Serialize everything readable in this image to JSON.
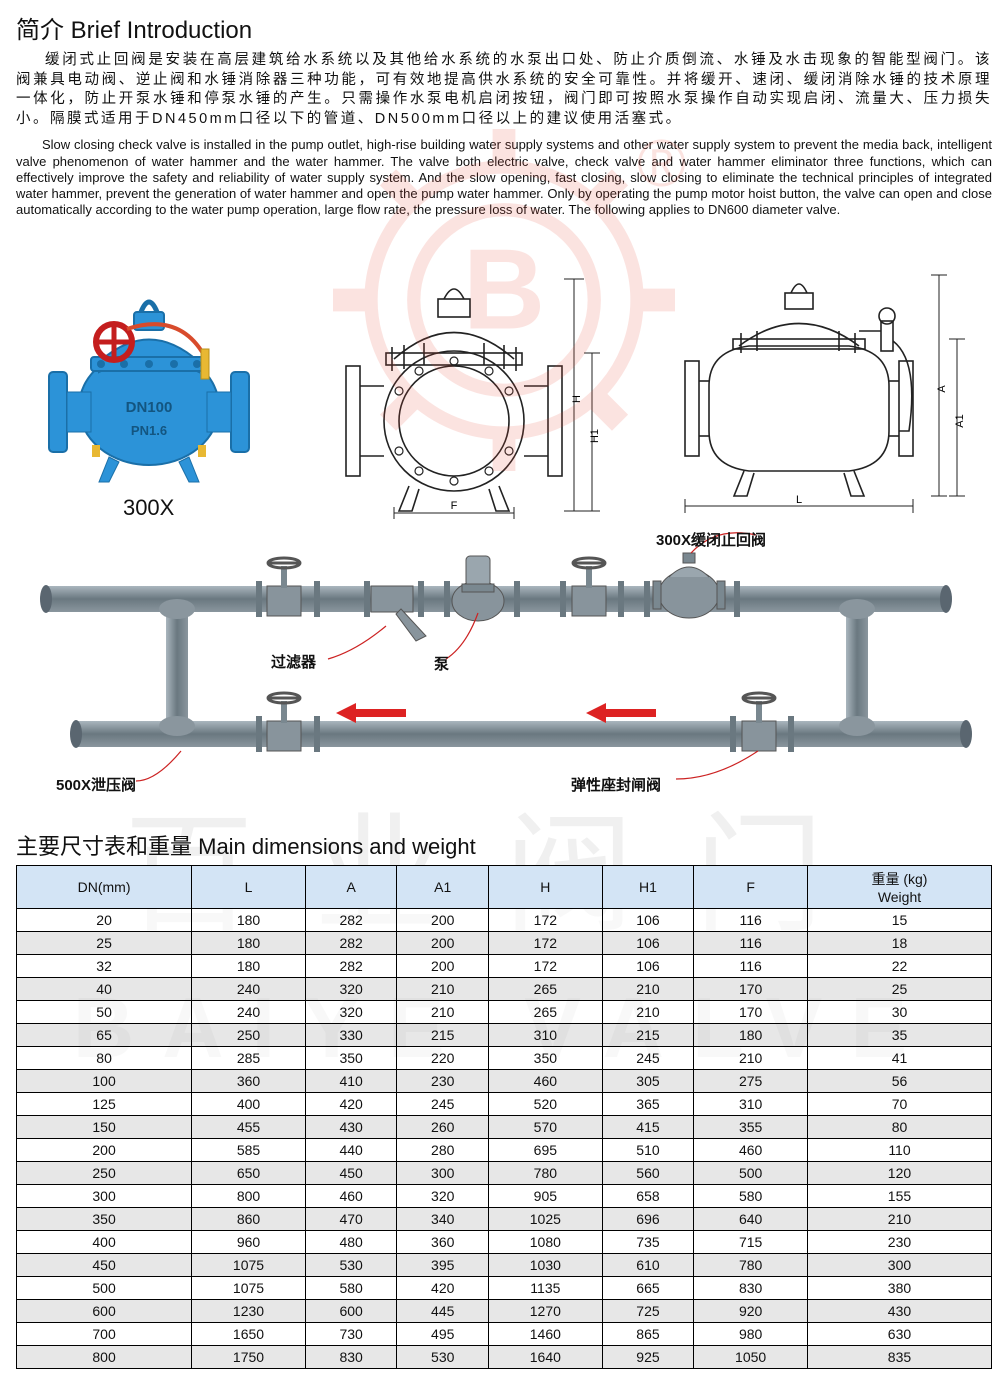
{
  "title_heading": "简介 Brief Introduction",
  "chinese_intro": "缓闭式止回阀是安装在高层建筑给水系统以及其他给水系统的水泵出口处、防止介质倒流、水锤及水击现象的智能型阀门。该阀兼具电动阀、逆止阀和水锤消除器三种功能，可有效地提高供水系统的安全可靠性。并将缓开、速闭、缓闭消除水锤的技术原理一体化，防止开泵水锤和停泵水锤的产生。只需操作水泵电机启闭按钮，阀门即可按照水泵操作自动实现启闭、流量大、压力损失小。隔膜式适用于DN450mm口径以下的管道、DN500mm口径以上的建议使用活塞式。",
  "english_intro": "Slow closing check valve is installed in the pump outlet, high-rise building water supply systems and other water supply system to prevent the media back, intelligent valve phenomenon of water hammer and the water hammer. The valve both electric valve, check valve and water hammer eliminator three functions, which can effectively improve the safety and reliability of water supply system. And the slow opening, fast closing, slow closing to eliminate the technical principles of integrated water hammer, prevent the generation of water hammer and open the pump water hammer. Only by operating the pump motor hoist button, the valve can open and close automatically according to the water pump operation, large flow rate, the pressure loss of water. The following applies to DN600 diameter valve.",
  "product_label": "300X",
  "tech_drawing": {
    "dim_H": "H",
    "dim_H1": "H1",
    "dim_F": "F",
    "dim_L": "L",
    "dim_A": "A",
    "dim_A1": "A1"
  },
  "install_labels": {
    "valve_300x": "300X缓闭止回阀",
    "filter": "过滤器",
    "pump": "泵",
    "relief_500x": "500X泄压阀",
    "elastic_gate": "弹性座封闸阀"
  },
  "table_heading": "主要尺寸表和重量 Main dimensions and weight",
  "table": {
    "header_bg": "#d3e4f5",
    "row_alt_bg": "#d4d4d4",
    "columns": [
      "DN(mm)",
      "L",
      "A",
      "A1",
      "H",
      "H1",
      "F",
      "重量 (kg)\nWeight"
    ],
    "rows": [
      [
        "20",
        "180",
        "282",
        "200",
        "172",
        "106",
        "116",
        "15"
      ],
      [
        "25",
        "180",
        "282",
        "200",
        "172",
        "106",
        "116",
        "18"
      ],
      [
        "32",
        "180",
        "282",
        "200",
        "172",
        "106",
        "116",
        "22"
      ],
      [
        "40",
        "240",
        "320",
        "210",
        "265",
        "210",
        "170",
        "25"
      ],
      [
        "50",
        "240",
        "320",
        "210",
        "265",
        "210",
        "170",
        "30"
      ],
      [
        "65",
        "250",
        "330",
        "215",
        "310",
        "215",
        "180",
        "35"
      ],
      [
        "80",
        "285",
        "350",
        "220",
        "350",
        "245",
        "210",
        "41"
      ],
      [
        "100",
        "360",
        "410",
        "230",
        "460",
        "305",
        "275",
        "56"
      ],
      [
        "125",
        "400",
        "420",
        "245",
        "520",
        "365",
        "310",
        "70"
      ],
      [
        "150",
        "455",
        "430",
        "260",
        "570",
        "415",
        "355",
        "80"
      ],
      [
        "200",
        "585",
        "440",
        "280",
        "695",
        "510",
        "460",
        "110"
      ],
      [
        "250",
        "650",
        "450",
        "300",
        "780",
        "560",
        "500",
        "120"
      ],
      [
        "300",
        "800",
        "460",
        "320",
        "905",
        "658",
        "580",
        "155"
      ],
      [
        "350",
        "860",
        "470",
        "340",
        "1025",
        "696",
        "640",
        "210"
      ],
      [
        "400",
        "960",
        "480",
        "360",
        "1080",
        "735",
        "715",
        "230"
      ],
      [
        "450",
        "1075",
        "530",
        "395",
        "1030",
        "610",
        "780",
        "300"
      ],
      [
        "500",
        "1075",
        "580",
        "420",
        "1135",
        "665",
        "830",
        "380"
      ],
      [
        "600",
        "1230",
        "600",
        "445",
        "1270",
        "725",
        "920",
        "430"
      ],
      [
        "700",
        "1650",
        "730",
        "495",
        "1460",
        "865",
        "980",
        "630"
      ],
      [
        "800",
        "1750",
        "830",
        "530",
        "1640",
        "925",
        "1050",
        "835"
      ]
    ]
  },
  "watermark_cn": "百业阀门",
  "watermark_en": "BAIYE VALVE",
  "colors": {
    "valve_body": "#2c93d8",
    "valve_dark": "#1a6fa8",
    "handwheel": "#c41e1e",
    "red_tube": "#d84b2c",
    "yellow_piece": "#e8b833",
    "watermark_red": "#e84b3a",
    "line": "#222",
    "pipe": "#7a8890",
    "pipe_light": "#a8b4bc"
  }
}
